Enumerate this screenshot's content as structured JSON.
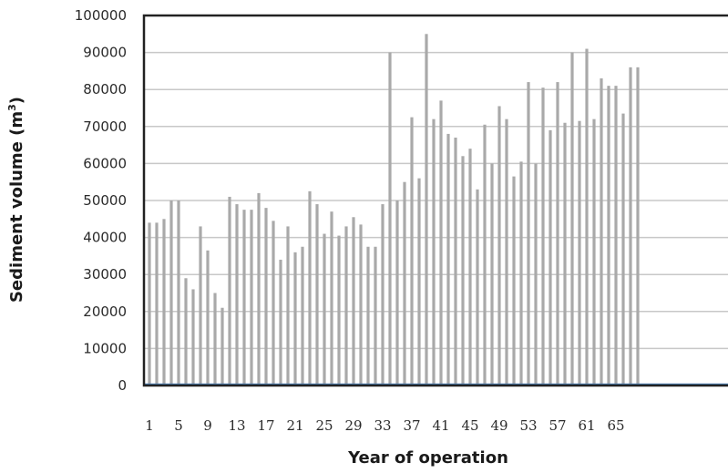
{
  "chart_data": {
    "type": "bar",
    "xlabel": "Year of operation",
    "ylabel": "Sediment volume (m",
    "ylabel_superscript": "3",
    "ylabel_close": ")",
    "ylim": [
      0,
      100000
    ],
    "yticks": [
      "0",
      "10000",
      "20000",
      "30000",
      "40000",
      "50000",
      "60000",
      "70000",
      "80000",
      "90000",
      "100000"
    ],
    "xtick_labels": [
      "1",
      "5",
      "9",
      "13",
      "17",
      "21",
      "25",
      "29",
      "33",
      "37",
      "41",
      "45",
      "49",
      "53",
      "57",
      "61",
      "65"
    ],
    "grid": true,
    "bar_color": "#a9a9a9",
    "baseline_color": "#4a7fb5",
    "categories": [
      1,
      2,
      3,
      4,
      5,
      6,
      7,
      8,
      9,
      10,
      11,
      12,
      13,
      14,
      15,
      16,
      17,
      18,
      19,
      20,
      21,
      22,
      23,
      24,
      25,
      26,
      27,
      28,
      29,
      30,
      31,
      32,
      33,
      34,
      35,
      36,
      37,
      38,
      39,
      40,
      41,
      42,
      43,
      44,
      45,
      46,
      47,
      48,
      49,
      50,
      51,
      52,
      53,
      54,
      55,
      56,
      57,
      58,
      59,
      60,
      61,
      62,
      63,
      64,
      65,
      66,
      67,
      68
    ],
    "values": [
      44000,
      44000,
      45000,
      50000,
      50000,
      29000,
      26000,
      43000,
      36500,
      25000,
      21000,
      51000,
      49000,
      47500,
      47500,
      52000,
      48000,
      44500,
      34000,
      43000,
      36000,
      37500,
      52500,
      49000,
      41000,
      47000,
      40500,
      43000,
      45500,
      43500,
      37500,
      37500,
      49000,
      90000,
      50000,
      55000,
      72500,
      56000,
      95000,
      72000,
      77000,
      68000,
      67000,
      62000,
      64000,
      53000,
      70500,
      60000,
      75500,
      72000,
      56500,
      60500,
      82000,
      60000,
      80500,
      69000,
      82000,
      71000,
      90000,
      71500,
      91000,
      72000,
      83000,
      81000,
      81000,
      73500,
      86000,
      86000
    ]
  }
}
